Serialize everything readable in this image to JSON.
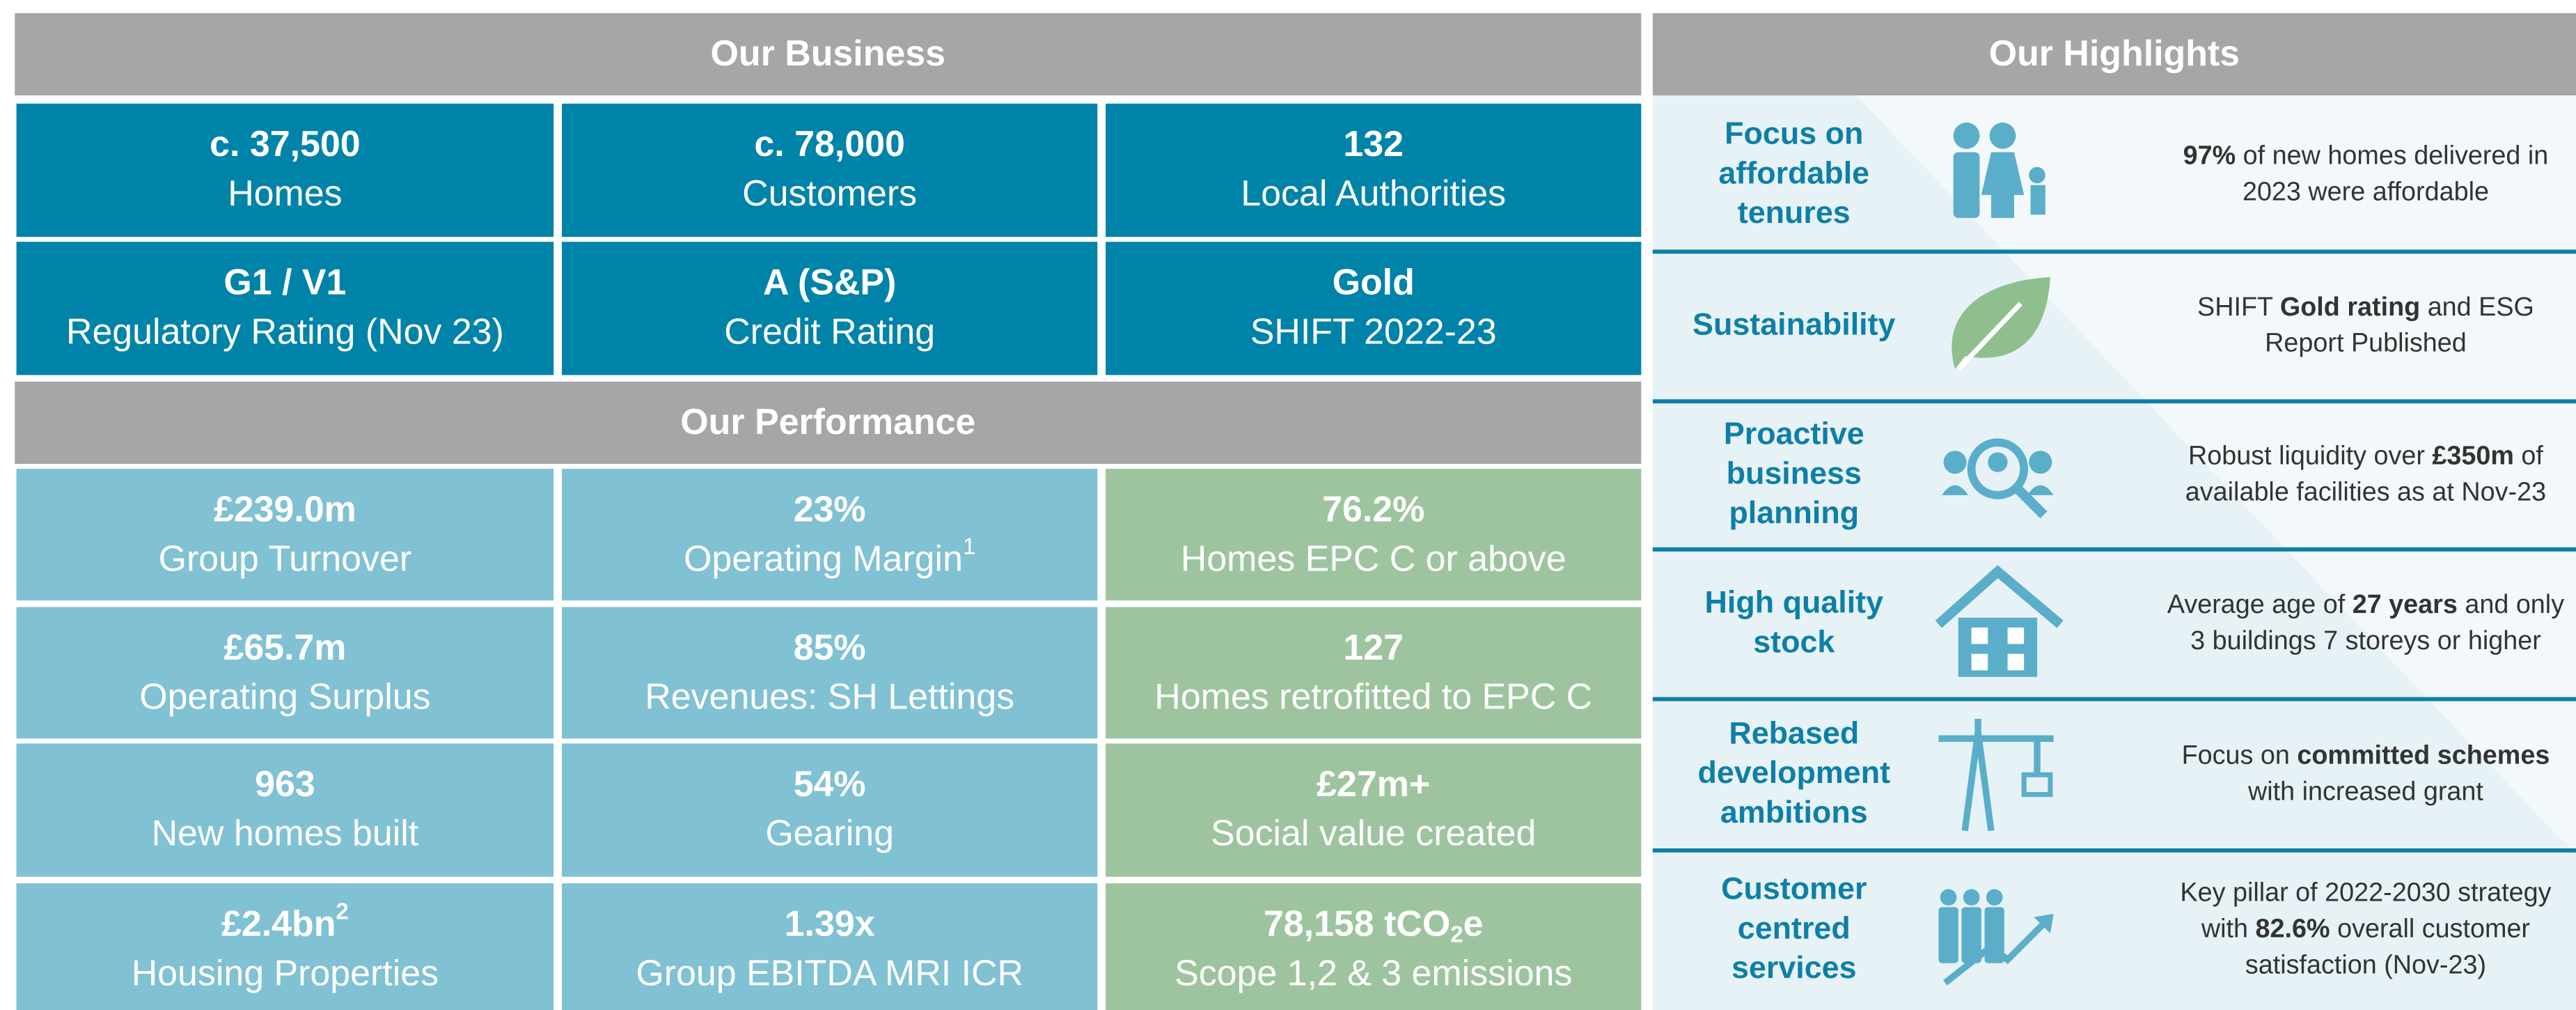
{
  "business": {
    "title": "Our Business",
    "tiles": [
      {
        "value": "c. 37,500",
        "label": "Homes"
      },
      {
        "value": "c. 78,000",
        "label": "Customers"
      },
      {
        "value": "132",
        "label": "Local Authorities"
      },
      {
        "value": "G1 / V1",
        "label": "Regulatory Rating (Nov 23)"
      },
      {
        "value": "A (S&P)",
        "label": "Credit Rating"
      },
      {
        "value": "Gold",
        "label": "SHIFT 2022-23"
      }
    ]
  },
  "performance": {
    "title": "Our Performance",
    "tiles": [
      {
        "value": "£239.0m",
        "label": "Group Turnover"
      },
      {
        "value": "23%",
        "label": "Operating Margin",
        "label_sup": "1"
      },
      {
        "value": "76.2%",
        "label": "Homes EPC C or above"
      },
      {
        "value": "£65.7m",
        "label": "Operating Surplus"
      },
      {
        "value": "85%",
        "label": "Revenues: SH Lettings"
      },
      {
        "value": "127",
        "label": "Homes retrofitted to EPC C"
      },
      {
        "value": "963",
        "label": "New homes built"
      },
      {
        "value": "54%",
        "label": "Gearing"
      },
      {
        "value": "£27m+",
        "label": "Social value created"
      },
      {
        "value": "£2.4bn",
        "value_sup": "2",
        "label": "Housing Properties"
      },
      {
        "value": "1.39x",
        "label": "Group EBITDA MRI ICR"
      },
      {
        "value": "78,158 tCO",
        "value_sub": "2",
        "value_suffix": "e",
        "label": "Scope 1,2 & 3 emissions"
      }
    ]
  },
  "highlights": {
    "title": "Our Highlights",
    "items": [
      {
        "heading": [
          "Focus on",
          "affordable",
          "tenures"
        ],
        "text": [
          [
            {
              "t": "97%",
              "b": true
            },
            {
              "t": " of new homes delivered in"
            }
          ],
          [
            {
              "t": "2023 were affordable"
            }
          ]
        ]
      },
      {
        "heading": [
          "Sustainability"
        ],
        "text": [
          [
            {
              "t": "SHIFT "
            },
            {
              "t": "Gold rating",
              "b": true
            },
            {
              "t": " and ESG"
            }
          ],
          [
            {
              "t": "Report Published"
            }
          ]
        ]
      },
      {
        "heading": [
          "Proactive",
          "business",
          "planning"
        ],
        "text": [
          [
            {
              "t": "Robust liquidity over "
            },
            {
              "t": "£350m",
              "b": true
            },
            {
              "t": " of"
            }
          ],
          [
            {
              "t": "available facilities as at Nov-23"
            }
          ]
        ]
      },
      {
        "heading": [
          "High quality",
          "stock"
        ],
        "text": [
          [
            {
              "t": "Average age of "
            },
            {
              "t": "27 years",
              "b": true
            },
            {
              "t": " and only"
            }
          ],
          [
            {
              "t": "3 buildings 7 storeys or higher"
            }
          ]
        ]
      },
      {
        "heading": [
          "Rebased",
          "development",
          "ambitions"
        ],
        "text": [
          [
            {
              "t": "Focus on "
            },
            {
              "t": "committed schemes",
              "b": true
            }
          ],
          [
            {
              "t": "with increased grant"
            }
          ]
        ]
      },
      {
        "heading": [
          "Customer",
          "centred",
          "services"
        ],
        "text": [
          [
            {
              "t": "Key pillar of 2022-2030 strategy"
            }
          ],
          [
            {
              "t": "with "
            },
            {
              "t": "82.6%",
              "b": true
            },
            {
              "t": " overall customer"
            }
          ],
          [
            {
              "t": "satisfaction (Nov-23)"
            }
          ]
        ]
      }
    ]
  }
}
